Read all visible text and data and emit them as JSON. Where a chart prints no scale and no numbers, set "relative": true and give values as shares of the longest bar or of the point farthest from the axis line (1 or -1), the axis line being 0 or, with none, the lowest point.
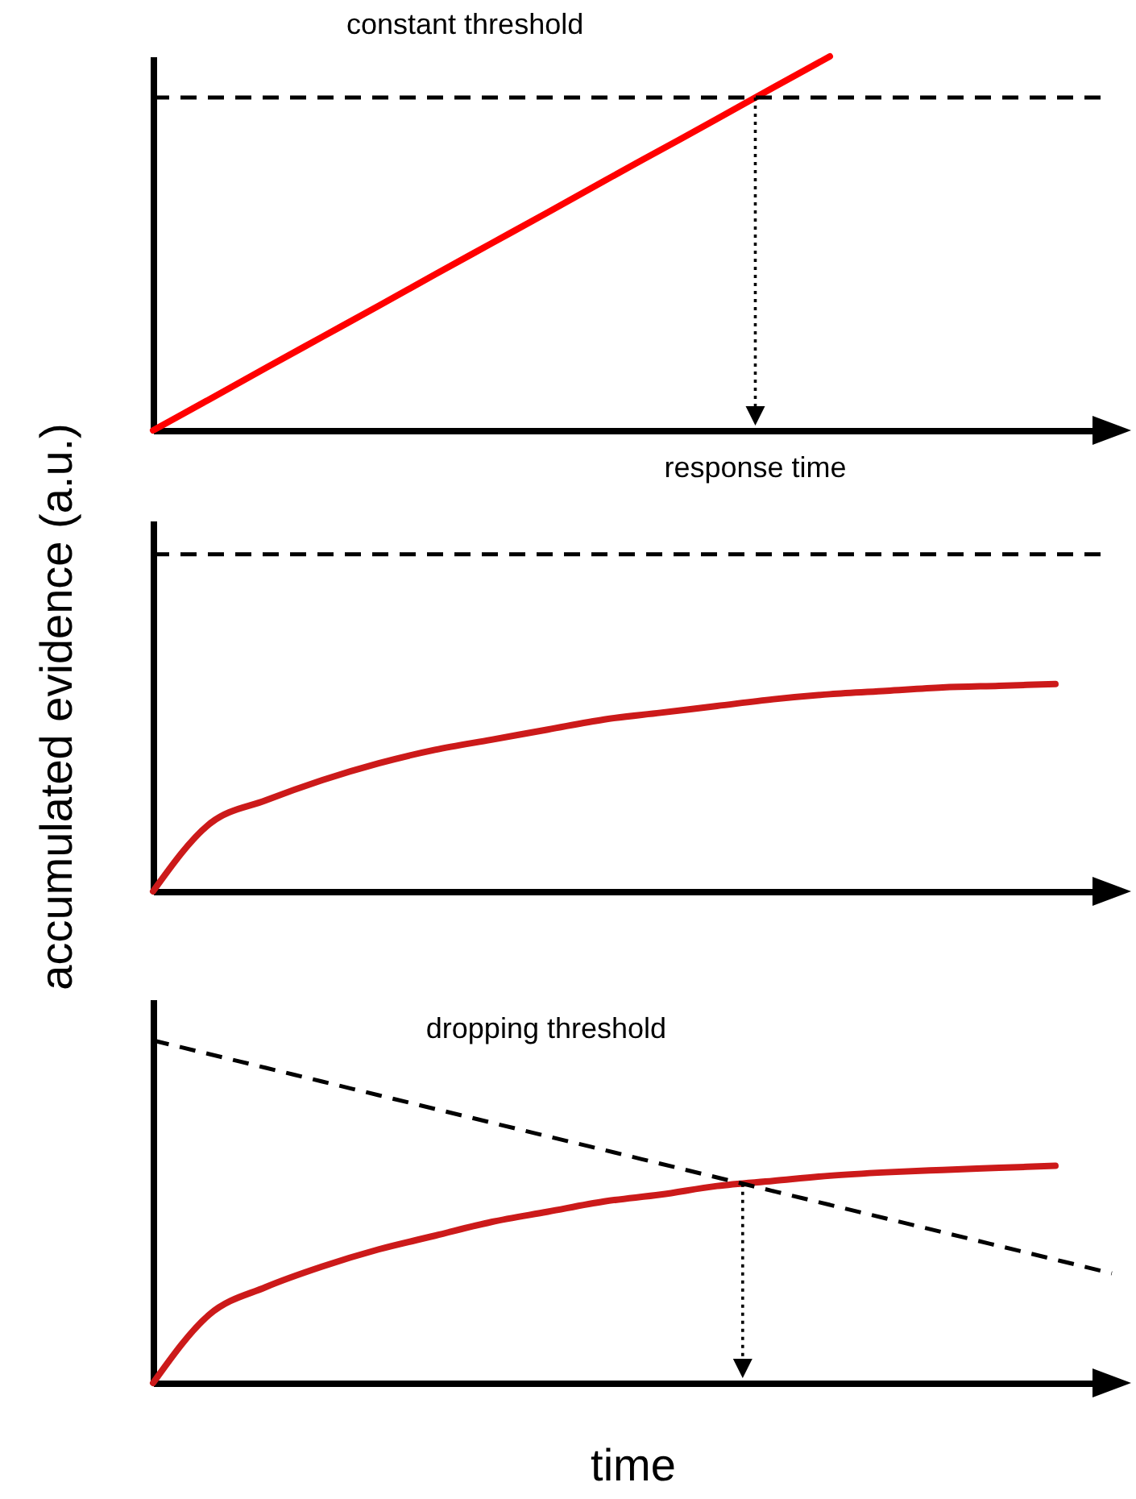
{
  "chart_data": [
    {
      "type": "line",
      "title": "constant threshold",
      "relative": true,
      "annotations": [
        "response time"
      ],
      "categories": [
        null,
        null,
        null,
        null,
        null,
        null,
        null,
        null,
        null,
        null,
        null,
        null,
        null,
        null,
        null,
        null,
        null,
        null
      ],
      "series": [
        {
          "color": "#ff0000",
          "values": [
            0,
            0.083,
            0.167,
            0.25,
            0.333,
            0.417,
            0.5,
            0.583,
            0.667,
            0.75,
            0.833,
            0.917,
            1,
            null,
            null,
            null,
            null,
            null
          ]
        },
        {
          "color": "#000000",
          "line_style": "dashed",
          "values": [
            0.89,
            0.89,
            0.89,
            0.89,
            0.89,
            0.89,
            0.89,
            0.89,
            0.89,
            0.89,
            0.89,
            0.89,
            0.89,
            0.89,
            0.89,
            0.89,
            0.89,
            0.89
          ]
        }
      ]
    },
    {
      "type": "line",
      "ylabel": "accumulated evidence (a.u.)",
      "relative": true,
      "categories": [
        null,
        null,
        null,
        null,
        null,
        null,
        null,
        null,
        null,
        null,
        null,
        null,
        null,
        null,
        null,
        null,
        null,
        null
      ],
      "series": [
        {
          "color": "#cc1a1a",
          "values": [
            0,
            0.2,
            0.27,
            0.33,
            0.38,
            0.42,
            0.45,
            0.48,
            0.51,
            0.53,
            0.55,
            0.57,
            0.585,
            0.595,
            0.605,
            0.61,
            0.615,
            null
          ]
        },
        {
          "color": "#000000",
          "line_style": "dashed",
          "values": [
            1,
            1,
            1,
            1,
            1,
            1,
            1,
            1,
            1,
            1,
            1,
            1,
            1,
            1,
            1,
            1,
            1,
            1
          ]
        }
      ]
    },
    {
      "type": "line",
      "xlabel": "time",
      "relative": true,
      "annotations": [
        "dropping threshold"
      ],
      "categories": [
        null,
        null,
        null,
        null,
        null,
        null,
        null,
        null,
        null,
        null,
        null,
        null,
        null,
        null,
        null,
        null,
        null,
        null
      ],
      "series": [
        {
          "color": "#cc1a1a",
          "values": [
            0,
            0.2,
            0.28,
            0.34,
            0.39,
            0.43,
            0.47,
            0.5,
            0.53,
            0.55,
            0.575,
            0.59,
            0.605,
            0.615,
            0.622,
            0.628,
            0.634,
            null
          ]
        },
        {
          "color": "#000000",
          "line_style": "dashed",
          "values": [
            1,
            0.96,
            0.92,
            0.88,
            0.84,
            0.8,
            0.76,
            0.72,
            0.68,
            0.64,
            0.6,
            0.56,
            0.52,
            0.48,
            0.44,
            0.4,
            0.36,
            0.32
          ]
        }
      ]
    }
  ]
}
